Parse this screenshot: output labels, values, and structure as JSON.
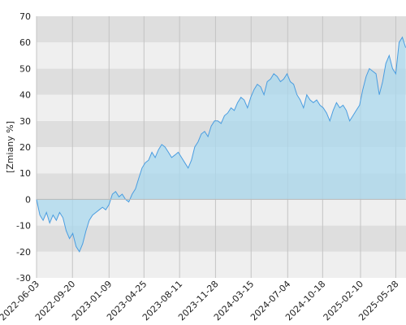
{
  "chart_data": {
    "type": "area",
    "ylabel": "[Zmiany %]",
    "ylim": [
      -30,
      70
    ],
    "yticks": [
      -30,
      -20,
      -10,
      0,
      10,
      20,
      30,
      40,
      50,
      60,
      70
    ],
    "xlim": [
      "2022-06-03",
      "2025-06-28"
    ],
    "xtick_labels": [
      "2022-06-03",
      "2022-09-20",
      "2023-01-09",
      "2023-04-25",
      "2023-08-11",
      "2023-11-28",
      "2024-03-15",
      "2024-07-04",
      "2024-10-18",
      "2025-02-10",
      "2025-05-28"
    ],
    "grid": true,
    "line_color": "#4a9de0",
    "fill_color": "#a9d8ee",
    "band_colors": [
      "#dedede",
      "#efefef"
    ],
    "series": [
      {
        "x": [
          "2022-06-03",
          "2022-06-13",
          "2022-06-23",
          "2022-07-03",
          "2022-07-13",
          "2022-07-23",
          "2022-08-02",
          "2022-08-12",
          "2022-08-22",
          "2022-09-01",
          "2022-09-11",
          "2022-09-21",
          "2022-10-01",
          "2022-10-11",
          "2022-10-21",
          "2022-10-31",
          "2022-11-10",
          "2022-11-20",
          "2022-11-30",
          "2022-12-10",
          "2022-12-20",
          "2022-12-30",
          "2023-01-09",
          "2023-01-19",
          "2023-01-29",
          "2023-02-08",
          "2023-02-18",
          "2023-02-28",
          "2023-03-10",
          "2023-03-20",
          "2023-03-30",
          "2023-04-09",
          "2023-04-19",
          "2023-04-29",
          "2023-05-09",
          "2023-05-19",
          "2023-05-29",
          "2023-06-08",
          "2023-06-18",
          "2023-06-28",
          "2023-07-08",
          "2023-07-18",
          "2023-07-28",
          "2023-08-07",
          "2023-08-17",
          "2023-08-27",
          "2023-09-06",
          "2023-09-16",
          "2023-09-26",
          "2023-10-06",
          "2023-10-16",
          "2023-10-26",
          "2023-11-05",
          "2023-11-15",
          "2023-11-25",
          "2023-12-05",
          "2023-12-15",
          "2023-12-25",
          "2024-01-04",
          "2024-01-14",
          "2024-01-24",
          "2024-02-03",
          "2024-02-13",
          "2024-02-23",
          "2024-03-04",
          "2024-03-14",
          "2024-03-24",
          "2024-04-03",
          "2024-04-13",
          "2024-04-23",
          "2024-05-03",
          "2024-05-13",
          "2024-05-23",
          "2024-06-02",
          "2024-06-12",
          "2024-06-22",
          "2024-07-02",
          "2024-07-12",
          "2024-07-22",
          "2024-08-01",
          "2024-08-11",
          "2024-08-21",
          "2024-08-31",
          "2024-09-10",
          "2024-09-20",
          "2024-09-30",
          "2024-10-10",
          "2024-10-20",
          "2024-10-30",
          "2024-11-09",
          "2024-11-19",
          "2024-11-29",
          "2024-12-09",
          "2024-12-19",
          "2024-12-29",
          "2025-01-08",
          "2025-01-18",
          "2025-01-28",
          "2025-02-07",
          "2025-02-17",
          "2025-02-27",
          "2025-03-09",
          "2025-03-19",
          "2025-03-29",
          "2025-04-08",
          "2025-04-18",
          "2025-04-28",
          "2025-05-08",
          "2025-05-18",
          "2025-05-28",
          "2025-06-07",
          "2025-06-17",
          "2025-06-27"
        ],
        "values": [
          0,
          -6,
          -8,
          -5,
          -9,
          -6,
          -8,
          -5,
          -7,
          -12,
          -15,
          -13,
          -18,
          -20,
          -17,
          -12,
          -8,
          -6,
          -5,
          -4,
          -3,
          -4,
          -2,
          2,
          3,
          1,
          2,
          0,
          -1,
          2,
          4,
          8,
          12,
          14,
          15,
          18,
          16,
          19,
          21,
          20,
          18,
          16,
          17,
          18,
          16,
          14,
          12,
          15,
          20,
          22,
          25,
          26,
          24,
          28,
          30,
          30,
          29,
          32,
          33,
          35,
          34,
          37,
          39,
          38,
          35,
          39,
          42,
          44,
          43,
          40,
          45,
          46,
          48,
          47,
          45,
          46,
          48,
          45,
          44,
          40,
          38,
          35,
          40,
          38,
          37,
          38,
          36,
          35,
          33,
          30,
          34,
          37,
          35,
          36,
          34,
          30,
          32,
          34,
          36,
          42,
          47,
          50,
          49,
          48,
          40,
          45,
          52,
          55,
          50,
          48,
          60,
          62,
          58
        ]
      }
    ]
  }
}
